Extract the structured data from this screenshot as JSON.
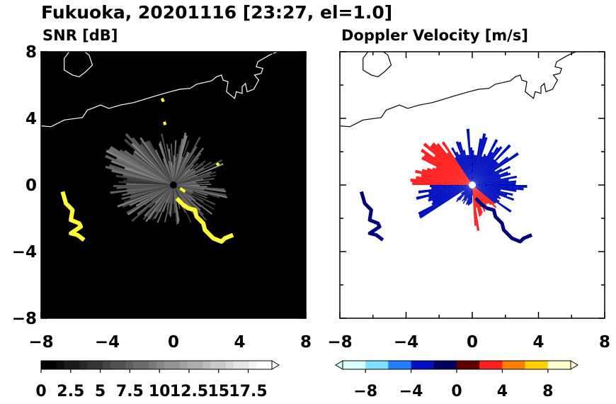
{
  "title": "Fukuoka, 20201116 [23:27, el=1.0]",
  "chart_data": [
    {
      "type": "heatmap",
      "title": "SNR [dB]",
      "xlim": [
        -8,
        8
      ],
      "ylim": [
        -8,
        8
      ],
      "xticks": [
        "−8",
        "−4",
        "0",
        "4",
        "8"
      ],
      "yticks": [
        "8",
        "4",
        "0",
        "−4",
        "−8"
      ],
      "background_color": "#000000",
      "echo_color": "#ffffff",
      "clutter_color": "#ffff33",
      "colorbar": {
        "ticks": [
          "0",
          "2.5",
          "5",
          "7.5",
          "10",
          "12.5",
          "15",
          "17.5"
        ],
        "range": [
          0,
          17.5
        ],
        "extend": "max",
        "colors": [
          "#000000",
          "#ffffff"
        ]
      }
    },
    {
      "type": "heatmap",
      "title": "Doppler Velocity [m/s]",
      "xlim": [
        -8,
        8
      ],
      "ylim": [
        -8,
        8
      ],
      "xticks": [
        "−8",
        "−4",
        "0",
        "4",
        "8"
      ],
      "colors": {
        "receding": "#ff2020",
        "approaching": "#0010c0",
        "clutter": "#000080"
      },
      "colorbar": {
        "ticks": [
          "−8",
          "−4",
          "0",
          "4",
          "8"
        ],
        "range": [
          -10,
          10
        ],
        "extend": "both",
        "colors": [
          "#d8ffff",
          "#80e0ff",
          "#2080ff",
          "#0010c0",
          "#000060",
          "#600000",
          "#ff2020",
          "#ff8000",
          "#ffd000",
          "#ffffd0"
        ]
      }
    }
  ]
}
